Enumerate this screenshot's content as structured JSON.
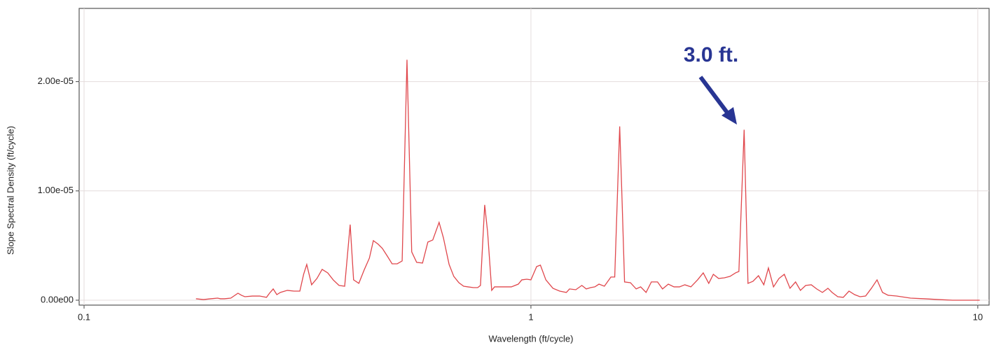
{
  "chart_data": {
    "type": "line",
    "x_label": "Wavelength (ft/cycle)",
    "y_label": "Slope Spectral Density (ft/cycle)",
    "annotation": "3.0 ft.",
    "log_x": true,
    "grid": true,
    "xlim": [
      0.0975,
      10.6
    ],
    "xticks": [
      0.1,
      1,
      10
    ],
    "ylim": [
      -4.5e-07,
      2.67e-05
    ],
    "yticks": [
      {
        "value": 0,
        "label": "0.00e00"
      },
      {
        "value": 1e-05,
        "label": "1.00e-05"
      },
      {
        "value": 2e-05,
        "label": "2.00e-05"
      }
    ],
    "x": [
      0.178,
      0.185,
      0.192,
      0.199,
      0.202,
      0.206,
      0.213,
      0.221,
      0.225,
      0.229,
      0.238,
      0.247,
      0.256,
      0.26,
      0.265,
      0.27,
      0.275,
      0.285,
      0.295,
      0.304,
      0.31,
      0.315,
      0.323,
      0.332,
      0.341,
      0.351,
      0.361,
      0.372,
      0.383,
      0.394,
      0.401,
      0.412,
      0.424,
      0.435,
      0.444,
      0.455,
      0.465,
      0.477,
      0.489,
      0.502,
      0.515,
      0.528,
      0.541,
      0.555,
      0.572,
      0.588,
      0.603,
      0.623,
      0.637,
      0.656,
      0.672,
      0.69,
      0.707,
      0.723,
      0.744,
      0.76,
      0.771,
      0.788,
      0.8,
      0.817,
      0.829,
      0.847,
      0.872,
      0.904,
      0.937,
      0.954,
      0.979,
      1.0,
      1.03,
      1.05,
      1.08,
      1.12,
      1.16,
      1.2,
      1.22,
      1.26,
      1.3,
      1.33,
      1.36,
      1.39,
      1.42,
      1.46,
      1.51,
      1.54,
      1.58,
      1.6,
      1.62,
      1.67,
      1.72,
      1.76,
      1.81,
      1.86,
      1.92,
      1.97,
      2.03,
      2.09,
      2.15,
      2.21,
      2.28,
      2.36,
      2.43,
      2.5,
      2.56,
      2.63,
      2.71,
      2.79,
      2.87,
      2.92,
      3.0,
      3.06,
      3.14,
      3.23,
      3.32,
      3.4,
      3.49,
      3.59,
      3.69,
      3.8,
      3.91,
      4.01,
      4.12,
      4.24,
      4.36,
      4.49,
      4.62,
      4.72,
      4.86,
      5.0,
      5.15,
      5.3,
      5.45,
      5.61,
      5.78,
      5.95,
      6.12,
      6.3,
      6.58,
      7.07,
      7.6,
      8.17,
      8.78,
      9.44,
      10.1
    ],
    "series": [
      {
        "color": "#e0474c",
        "values": [
          1.3e-07,
          6e-08,
          1.3e-07,
          1.9e-07,
          1.3e-07,
          1.3e-07,
          1.9e-07,
          6.4e-07,
          4.5e-07,
          3.2e-07,
          3.8e-07,
          3.8e-07,
          2.6e-07,
          6.4e-07,
          1.03e-06,
          5.1e-07,
          7.1e-07,
          9e-07,
          8.3e-07,
          8.3e-07,
          2.37e-06,
          3.27e-06,
          1.41e-06,
          1.99e-06,
          2.82e-06,
          2.5e-06,
          1.86e-06,
          1.35e-06,
          1.28e-06,
          6.92e-06,
          1.86e-06,
          1.54e-06,
          2.82e-06,
          3.85e-06,
          5.45e-06,
          5.13e-06,
          4.74e-06,
          4.04e-06,
          3.33e-06,
          3.33e-06,
          3.59e-06,
          2.2e-05,
          4.42e-06,
          3.46e-06,
          3.4e-06,
          5.32e-06,
          5.51e-06,
          7.12e-06,
          5.71e-06,
          3.27e-06,
          2.18e-06,
          1.6e-06,
          1.28e-06,
          1.22e-06,
          1.15e-06,
          1.15e-06,
          1.35e-06,
          8.72e-06,
          6.22e-06,
          9e-07,
          1.22e-06,
          1.22e-06,
          1.22e-06,
          1.22e-06,
          1.47e-06,
          1.86e-06,
          1.92e-06,
          1.86e-06,
          3.08e-06,
          3.21e-06,
          1.86e-06,
          1.09e-06,
          8.3e-07,
          7.1e-07,
          1.03e-06,
          9.6e-07,
          1.35e-06,
          1.03e-06,
          1.15e-06,
          1.22e-06,
          1.47e-06,
          1.28e-06,
          2.12e-06,
          2.12e-06,
          1.59e-05,
          8.91e-06,
          1.67e-06,
          1.6e-06,
          1.03e-06,
          1.22e-06,
          7.1e-07,
          1.67e-06,
          1.67e-06,
          1.03e-06,
          1.47e-06,
          1.22e-06,
          1.22e-06,
          1.41e-06,
          1.22e-06,
          1.86e-06,
          2.5e-06,
          1.54e-06,
          2.37e-06,
          1.99e-06,
          2.05e-06,
          2.18e-06,
          2.5e-06,
          2.63e-06,
          1.56e-05,
          1.54e-06,
          1.73e-06,
          2.24e-06,
          1.41e-06,
          2.95e-06,
          1.22e-06,
          1.99e-06,
          2.37e-06,
          1.09e-06,
          1.67e-06,
          9e-07,
          1.35e-06,
          1.41e-06,
          1.03e-06,
          7.1e-07,
          1.09e-06,
          7.1e-07,
          3.2e-07,
          2.6e-07,
          8.3e-07,
          5.1e-07,
          3.2e-07,
          3.8e-07,
          1.09e-06,
          1.86e-06,
          7.1e-07,
          4.5e-07,
          3.8e-07,
          1.9e-07,
          1.3e-07,
          6e-08,
          0,
          0,
          0
        ]
      }
    ]
  }
}
